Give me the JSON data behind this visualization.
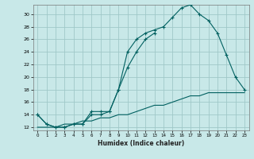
{
  "xlabel": "Humidex (Indice chaleur)",
  "bg_color": "#c8e8e8",
  "grid_color": "#a0c8c8",
  "line_color": "#006060",
  "xlim": [
    -0.5,
    23.5
  ],
  "ylim": [
    11.5,
    31.5
  ],
  "yticks": [
    12,
    14,
    16,
    18,
    20,
    22,
    24,
    26,
    28,
    30
  ],
  "xticks": [
    0,
    1,
    2,
    3,
    4,
    5,
    6,
    7,
    8,
    9,
    10,
    11,
    12,
    13,
    14,
    15,
    16,
    17,
    18,
    19,
    20,
    21,
    22,
    23
  ],
  "line1_x": [
    0,
    1,
    2,
    3,
    4,
    5,
    6,
    7,
    8,
    9,
    10,
    11,
    12,
    13,
    14,
    15,
    16,
    17,
    18,
    19,
    20,
    21,
    22,
    23
  ],
  "line1_y": [
    14.0,
    12.5,
    12.0,
    12.0,
    12.5,
    12.5,
    14.5,
    14.5,
    14.5,
    18.0,
    24.0,
    26.0,
    27.0,
    27.5,
    28.0,
    29.5,
    31.0,
    31.5,
    30.0,
    29.0,
    27.0,
    23.5,
    20.0,
    18.0
  ],
  "line2_x": [
    0,
    1,
    2,
    3,
    4,
    5,
    6,
    7,
    8,
    9,
    10,
    11,
    12,
    13,
    14,
    15,
    16,
    17,
    18,
    19,
    20,
    21,
    22,
    23
  ],
  "line2_y": [
    14.0,
    12.5,
    12.0,
    12.0,
    12.5,
    12.5,
    14.0,
    14.0,
    14.5,
    18.0,
    21.5,
    24.0,
    26.0,
    27.0,
    null,
    null,
    null,
    null,
    null,
    null,
    null,
    null,
    null,
    null
  ],
  "line3_x": [
    0,
    1,
    2,
    3,
    4,
    5,
    6,
    7,
    8,
    9,
    10,
    11,
    12,
    13,
    14,
    15,
    16,
    17,
    18,
    19,
    20,
    21,
    22,
    23
  ],
  "line3_y": [
    12.0,
    12.0,
    12.0,
    12.5,
    12.5,
    13.0,
    13.0,
    13.5,
    13.5,
    14.0,
    14.0,
    14.5,
    15.0,
    15.5,
    15.5,
    16.0,
    16.5,
    17.0,
    17.0,
    17.5,
    17.5,
    17.5,
    17.5,
    17.5
  ]
}
